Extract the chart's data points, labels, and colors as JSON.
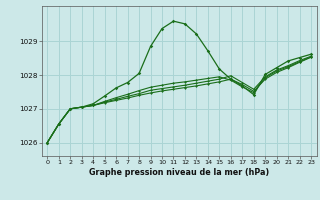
{
  "title": "Graphe pression niveau de la mer (hPa)",
  "bg_color": "#cce8e8",
  "grid_color": "#aad4d4",
  "line_color": "#1a6e1a",
  "xlim": [
    -0.5,
    23.5
  ],
  "ylim": [
    1025.6,
    1030.05
  ],
  "yticks": [
    1026,
    1027,
    1028,
    1029
  ],
  "xticks": [
    0,
    1,
    2,
    3,
    4,
    5,
    6,
    7,
    8,
    9,
    10,
    11,
    12,
    13,
    14,
    15,
    16,
    17,
    18,
    19,
    20,
    21,
    22,
    23
  ],
  "series1": [
    1026.0,
    1026.55,
    1027.0,
    1027.05,
    1027.15,
    1027.38,
    1027.62,
    1027.78,
    1028.05,
    1028.85,
    1029.38,
    1029.6,
    1029.52,
    1029.22,
    1028.72,
    1028.18,
    1027.88,
    1027.68,
    1027.42,
    1028.02,
    1028.22,
    1028.42,
    1028.52,
    1028.62
  ],
  "series2": [
    1026.0,
    1026.55,
    1027.0,
    1027.05,
    1027.1,
    1027.18,
    1027.25,
    1027.32,
    1027.4,
    1027.47,
    1027.53,
    1027.58,
    1027.63,
    1027.68,
    1027.74,
    1027.8,
    1027.88,
    1027.72,
    1027.52,
    1027.88,
    1028.08,
    1028.22,
    1028.38,
    1028.53
  ],
  "series3": [
    1026.0,
    1026.55,
    1027.0,
    1027.05,
    1027.1,
    1027.2,
    1027.28,
    1027.37,
    1027.45,
    1027.55,
    1027.6,
    1027.65,
    1027.7,
    1027.76,
    1027.82,
    1027.88,
    1027.98,
    1027.78,
    1027.58,
    1027.95,
    1028.15,
    1028.28,
    1028.43,
    1028.56
  ],
  "series4": [
    1026.0,
    1026.55,
    1027.0,
    1027.05,
    1027.1,
    1027.22,
    1027.33,
    1027.43,
    1027.54,
    1027.64,
    1027.7,
    1027.76,
    1027.8,
    1027.85,
    1027.9,
    1027.95,
    1027.85,
    1027.65,
    1027.48,
    1027.92,
    1028.12,
    1028.25,
    1028.4,
    1028.54
  ]
}
